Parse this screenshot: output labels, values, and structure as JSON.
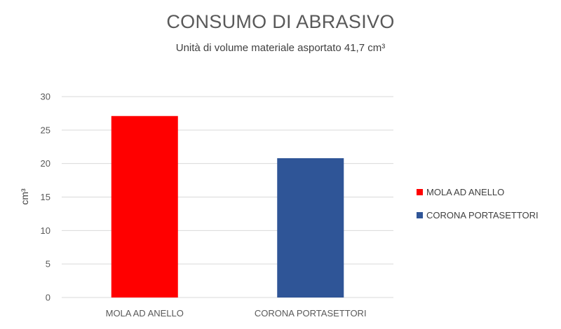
{
  "chart_data": {
    "type": "bar",
    "title": "CONSUMO DI ABRASIVO",
    "subtitle": "Unità di volume materiale asportato 41,7 cm³",
    "xlabel": "",
    "ylabel": "cm³",
    "ylim": [
      0,
      30
    ],
    "yticks": [
      0,
      5,
      10,
      15,
      20,
      25,
      30
    ],
    "grid": true,
    "legend_position": "right",
    "categories": [
      "MOLA AD ANELLO",
      "CORONA PORTASETTORI"
    ],
    "series": [
      {
        "name": "MOLA AD ANELLO",
        "values": [
          27.1,
          null
        ],
        "color": "#ff0000"
      },
      {
        "name": "CORONA PORTASETTORI",
        "values": [
          null,
          20.8
        ],
        "color": "#2f5597"
      }
    ]
  }
}
